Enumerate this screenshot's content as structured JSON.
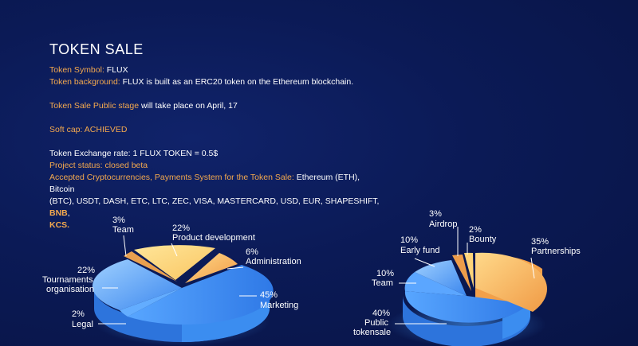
{
  "title": "TOKEN SALE",
  "symbol": {
    "label": "Token Symbol:",
    "value": "FLUX"
  },
  "background": {
    "label": "Token background:",
    "value": "FLUX is built as an ERC20 token on the Ethereum blockchain."
  },
  "public_stage": {
    "label": "Token Sale Public stage",
    "value": "will take place on April, 17"
  },
  "soft_cap": {
    "label": "Soft cap: ACHIEVED"
  },
  "exchange_rate": {
    "label": "Token Exchange rate: 1 FLUX TOKEN = 0.5$"
  },
  "project_status": {
    "label": "Project status: closed beta"
  },
  "accepted": {
    "label": "Accepted Cryptocurrencies, Payments System for the Token Sale:",
    "value_line1": "Ethereum (ETH), Bitcoin",
    "value_line2": "(BTC), USDT, DASH, ETC, LTC, ZEC, VISA, MASTERCARD, USD, EUR, SHAPESHIFT,",
    "extra1": "BNB",
    "extra1_sep": ",",
    "extra2": "KCS."
  },
  "colors": {
    "accent": "#f4a94e",
    "background": "#0b1a56",
    "blue": "#3d8ff0",
    "orange": "#f6b15a"
  },
  "chart_data": [
    {
      "type": "pie",
      "name_hint": "left",
      "slices": [
        {
          "pct": "3%",
          "label": "Team",
          "value": 3
        },
        {
          "pct": "22%",
          "label": "Product development",
          "value": 22
        },
        {
          "pct": "6%",
          "label": "Administration",
          "value": 6
        },
        {
          "pct": "45%",
          "label": "Marketing",
          "value": 45
        },
        {
          "pct": "2%",
          "label": "Legal",
          "value": 2
        },
        {
          "pct": "22%",
          "label": "Tournaments organisation",
          "label_line1": "Tournaments",
          "label_line2": "organisation",
          "value": 22
        }
      ]
    },
    {
      "type": "pie",
      "name_hint": "right",
      "slices": [
        {
          "pct": "3%",
          "label": "Airdrop",
          "value": 3
        },
        {
          "pct": "2%",
          "label": "Bounty",
          "value": 2
        },
        {
          "pct": "35%",
          "label": "Partnerships",
          "value": 35
        },
        {
          "pct": "40%",
          "label": "Public tokensale",
          "label_line1": "Public",
          "label_line2": "tokensale",
          "value": 40
        },
        {
          "pct": "10%",
          "label": "Team",
          "value": 10
        },
        {
          "pct": "10%",
          "label": "Early fund",
          "value": 10
        }
      ]
    }
  ]
}
